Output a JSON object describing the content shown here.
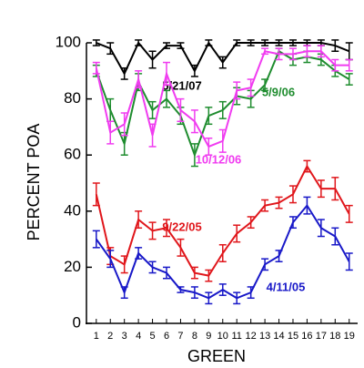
{
  "chart_data": {
    "type": "line",
    "x_label": "GREEN",
    "y_label": "PERCENT POA",
    "x": [
      1,
      2,
      3,
      4,
      5,
      6,
      7,
      8,
      9,
      10,
      11,
      12,
      13,
      14,
      15,
      16,
      17,
      18,
      19
    ],
    "xlim": [
      0.3,
      19.6
    ],
    "xticks": [
      1,
      2,
      3,
      4,
      5,
      6,
      7,
      8,
      9,
      10,
      11,
      12,
      13,
      14,
      15,
      16,
      17,
      18,
      19
    ],
    "ylim": [
      0,
      100
    ],
    "yticks": [
      0,
      20,
      40,
      60,
      80,
      100
    ],
    "series": [
      {
        "name": "5/21/07",
        "color": "#000000",
        "values": [
          100,
          98,
          89,
          100,
          94,
          99,
          99,
          90,
          100,
          93,
          100,
          100,
          100,
          100,
          100,
          100,
          100,
          99,
          97
        ],
        "errors": [
          1,
          2,
          2,
          1,
          3,
          1,
          1,
          2,
          1,
          2,
          1,
          1,
          1,
          1,
          1,
          1,
          1,
          2,
          3
        ]
      },
      {
        "name": "5/9/06",
        "color": "#1e8c2e",
        "values": [
          90,
          76,
          64,
          86,
          76,
          80,
          74,
          60,
          74,
          76,
          81,
          80,
          85,
          97,
          94,
          95,
          94,
          90,
          87
        ],
        "errors": [
          2,
          4,
          4,
          3,
          3,
          3,
          3,
          4,
          3,
          3,
          3,
          3,
          2,
          1,
          2,
          2,
          2,
          2,
          2
        ]
      },
      {
        "name": "10/12/06",
        "color": "#f03cf0",
        "values": [
          91,
          68,
          71,
          87,
          67,
          89,
          76,
          72,
          63,
          65,
          83,
          84,
          97,
          96,
          96,
          97,
          97,
          92,
          92
        ],
        "errors": [
          2,
          4,
          4,
          3,
          4,
          4,
          4,
          4,
          3,
          4,
          3,
          3,
          1,
          2,
          2,
          2,
          2,
          2,
          2
        ]
      },
      {
        "name": "9/22/05",
        "color": "#e0161b",
        "values": [
          46,
          24,
          21,
          37,
          33,
          34,
          27,
          18,
          17,
          25,
          32,
          36,
          42,
          43,
          46,
          56,
          48,
          48,
          39
        ],
        "errors": [
          4,
          3,
          3,
          3,
          3,
          3,
          3,
          2,
          2,
          3,
          3,
          2,
          2,
          2,
          3,
          2,
          3,
          4,
          3
        ]
      },
      {
        "name": "4/11/05",
        "color": "#1818c8",
        "values": [
          30,
          23,
          11,
          25,
          20,
          18,
          12,
          11,
          9,
          12,
          9,
          11,
          21,
          24,
          36,
          42,
          34,
          31,
          22
        ],
        "errors": [
          3,
          3,
          2,
          2,
          2,
          2,
          1,
          2,
          2,
          2,
          2,
          2,
          2,
          2,
          2,
          3,
          3,
          3,
          3
        ]
      }
    ]
  }
}
